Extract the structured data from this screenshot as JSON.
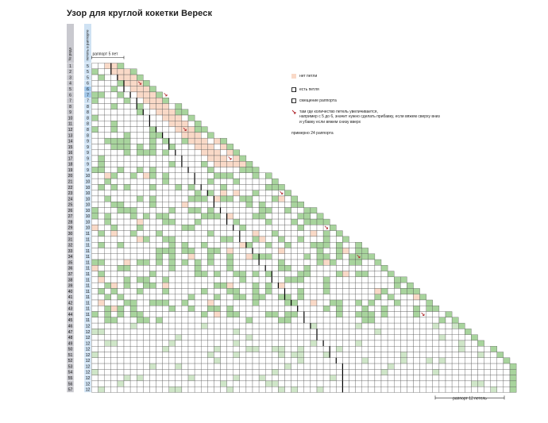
{
  "title": "Узор для круглой кокетки Вереск",
  "header": {
    "row_label": "№ ряда",
    "stitch_label": "петель в раппорте"
  },
  "repeat_top": "раппорт 5 пет",
  "repeat_bottom": "раппорт 12 петель",
  "legend": {
    "empty_label": "нет петли",
    "loop_label": "есть петля",
    "shift_label": "смещение раппорта",
    "note_icon": "arrow-mark-icon",
    "note": [
      "там где количество петель увеличивается,",
      "например с 5 до 6, значит нужно сделать прибавку, если вяжем сверху вниз",
      "и убавку если вяжем снизу вверх"
    ],
    "approx": "примерно 24 раппорта"
  },
  "colors": {
    "empty": "#f9d9c7",
    "green": "#a8d49d",
    "light_green": "#cfe6c8",
    "grid": "#555555",
    "row_header": "#c9c9cf",
    "stitch_header": "#cfe2f3",
    "stitch_highlight": "#9fc5e8"
  },
  "rows": [
    "1",
    "2",
    "3",
    "4",
    "5",
    "6",
    "7",
    "8",
    "9",
    "10",
    "11",
    "12",
    "13",
    "14",
    "15",
    "16",
    "17",
    "18",
    "19",
    "20",
    "21",
    "22",
    "23",
    "24",
    "25",
    "26",
    "27",
    "28",
    "29",
    "30",
    "31",
    "32",
    "33",
    "34",
    "35",
    "36",
    "37",
    "38",
    "39",
    "40",
    "41",
    "42",
    "43",
    "44",
    "45",
    "46",
    "47",
    "48",
    "49",
    "50",
    "51",
    "52",
    "53",
    "54",
    "55",
    "56",
    "57"
  ],
  "stitches": [
    "5",
    "5",
    "5",
    "6",
    "6",
    "7",
    "7",
    "8",
    "8",
    "8",
    "8",
    "8",
    "8",
    "9",
    "9",
    "9",
    "9",
    "9",
    "9",
    "10",
    "10",
    "10",
    "10",
    "10",
    "10",
    "10",
    "10",
    "10",
    "10",
    "11",
    "11",
    "11",
    "11",
    "11",
    "11",
    "11",
    "11",
    "11",
    "11",
    "11",
    "11",
    "11",
    "11",
    "11",
    "11",
    "12",
    "12",
    "12",
    "12",
    "12",
    "12",
    "12",
    "12",
    "12",
    "12",
    "12",
    "12"
  ]
}
